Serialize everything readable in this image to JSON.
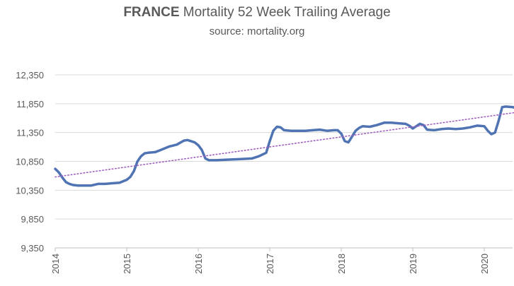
{
  "chart_data": {
    "type": "line",
    "title_bold": "FRANCE",
    "title_rest": "Mortality 52 Week Trailing Average",
    "subtitle": "source: mortality.org",
    "xlabel": "",
    "ylabel": "",
    "x_ticks": [
      "2014",
      "2015",
      "2016",
      "2017",
      "2018",
      "2019",
      "2020"
    ],
    "y_ticks": [
      "9,350",
      "9,850",
      "10,350",
      "10,850",
      "11,350",
      "11,850",
      "12,350"
    ],
    "ylim": [
      9350,
      12350
    ],
    "xlim": [
      2014.0,
      2020.45
    ],
    "grid": "horizontal",
    "legend": "none",
    "series": [
      {
        "color": "#4f73b3",
        "points": [
          [
            2014.0,
            10720
          ],
          [
            2014.05,
            10660
          ],
          [
            2014.1,
            10570
          ],
          [
            2014.15,
            10490
          ],
          [
            2014.2,
            10460
          ],
          [
            2014.25,
            10440
          ],
          [
            2014.32,
            10430
          ],
          [
            2014.4,
            10430
          ],
          [
            2014.5,
            10430
          ],
          [
            2014.6,
            10460
          ],
          [
            2014.7,
            10460
          ],
          [
            2014.8,
            10470
          ],
          [
            2014.9,
            10480
          ],
          [
            2015.0,
            10530
          ],
          [
            2015.05,
            10580
          ],
          [
            2015.1,
            10680
          ],
          [
            2015.15,
            10850
          ],
          [
            2015.2,
            10940
          ],
          [
            2015.25,
            10990
          ],
          [
            2015.3,
            11000
          ],
          [
            2015.4,
            11010
          ],
          [
            2015.5,
            11060
          ],
          [
            2015.6,
            11110
          ],
          [
            2015.7,
            11140
          ],
          [
            2015.8,
            11210
          ],
          [
            2015.85,
            11220
          ],
          [
            2015.9,
            11200
          ],
          [
            2015.95,
            11180
          ],
          [
            2016.0,
            11130
          ],
          [
            2016.05,
            11050
          ],
          [
            2016.1,
            10900
          ],
          [
            2016.15,
            10870
          ],
          [
            2016.25,
            10870
          ],
          [
            2016.4,
            10880
          ],
          [
            2016.6,
            10890
          ],
          [
            2016.75,
            10900
          ],
          [
            2016.85,
            10940
          ],
          [
            2016.95,
            11000
          ],
          [
            2017.0,
            11200
          ],
          [
            2017.05,
            11380
          ],
          [
            2017.1,
            11450
          ],
          [
            2017.15,
            11440
          ],
          [
            2017.2,
            11390
          ],
          [
            2017.3,
            11380
          ],
          [
            2017.4,
            11380
          ],
          [
            2017.5,
            11380
          ],
          [
            2017.6,
            11390
          ],
          [
            2017.7,
            11400
          ],
          [
            2017.8,
            11380
          ],
          [
            2017.9,
            11390
          ],
          [
            2017.95,
            11390
          ],
          [
            2018.0,
            11330
          ],
          [
            2018.05,
            11200
          ],
          [
            2018.1,
            11180
          ],
          [
            2018.15,
            11280
          ],
          [
            2018.2,
            11380
          ],
          [
            2018.25,
            11430
          ],
          [
            2018.3,
            11460
          ],
          [
            2018.4,
            11450
          ],
          [
            2018.5,
            11480
          ],
          [
            2018.6,
            11520
          ],
          [
            2018.7,
            11520
          ],
          [
            2018.8,
            11510
          ],
          [
            2018.9,
            11500
          ],
          [
            2018.95,
            11470
          ],
          [
            2019.0,
            11420
          ],
          [
            2019.05,
            11460
          ],
          [
            2019.1,
            11500
          ],
          [
            2019.15,
            11480
          ],
          [
            2019.2,
            11400
          ],
          [
            2019.3,
            11390
          ],
          [
            2019.4,
            11410
          ],
          [
            2019.5,
            11420
          ],
          [
            2019.6,
            11410
          ],
          [
            2019.7,
            11420
          ],
          [
            2019.8,
            11440
          ],
          [
            2019.9,
            11470
          ],
          [
            2020.0,
            11460
          ],
          [
            2020.05,
            11380
          ],
          [
            2020.1,
            11320
          ],
          [
            2020.15,
            11350
          ],
          [
            2020.2,
            11550
          ],
          [
            2020.25,
            11790
          ],
          [
            2020.3,
            11800
          ],
          [
            2020.4,
            11790
          ],
          [
            2020.45,
            11770
          ]
        ]
      },
      {
        "color": "#a060c0",
        "style": "dotted",
        "trendline": true,
        "points": [
          [
            2014.0,
            10580
          ],
          [
            2020.45,
            11700
          ]
        ]
      }
    ]
  }
}
